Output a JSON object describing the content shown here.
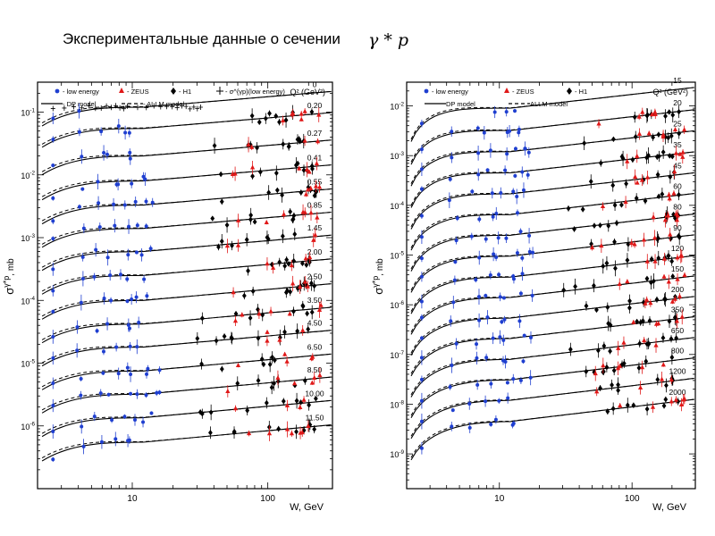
{
  "slide": {
    "title": "Экспериментальные данные о сечении",
    "formula": "γ * p"
  },
  "colors": {
    "low_energy": "#1f3fd0",
    "zeus": "#e01818",
    "h1": "#000000",
    "model": "#000000"
  },
  "chart_data": [
    {
      "type": "scatter",
      "xscale": "log",
      "yscale": "log",
      "xlim": [
        2,
        300
      ],
      "ylim": [
        1e-07,
        0.3
      ],
      "xlabel": "W, GeV",
      "ylabel": "σ^{γ*p}, mb",
      "x_ticks": [
        "10",
        "100"
      ],
      "y_ticks": [
        "10^{-1}",
        "10^{-2}",
        "10^{-3}",
        "10^{-4}",
        "10^{-5}",
        "10^{-6}"
      ],
      "legend": {
        "placement": "top",
        "q2_header": "Q² (GeV²)",
        "entries": [
          "- low energy",
          "- ZEUS",
          "- H1",
          "- σ^{γp}(low energy)",
          "- DP model",
          "- ALLM model"
        ]
      },
      "q2_labels": [
        "0",
        "0.20",
        "0.27",
        "0.41",
        "0.55",
        "0.85",
        "1.45",
        "2.00",
        "2.50",
        "3.50",
        "4.50",
        "6.50",
        "8.50",
        "10.00",
        "11.50"
      ],
      "curve_levels": [
        0.12,
        0.055,
        0.02,
        0.008,
        0.0033,
        0.0014,
        0.0006,
        0.00025,
        0.0001,
        4.2e-05,
        1.8e-05,
        7.5e-06,
        3.2e-06,
        1.35e-06,
        5.5e-07
      ]
    },
    {
      "type": "scatter",
      "xscale": "log",
      "yscale": "log",
      "xlim": [
        2,
        300
      ],
      "ylim": [
        2e-10,
        0.03
      ],
      "xlabel": "W, GeV",
      "ylabel": "σ^{γ*p}, mb",
      "x_ticks": [
        "10",
        "100"
      ],
      "y_ticks": [
        "10^{-2}",
        "10^{-3}",
        "10^{-4}",
        "10^{-5}",
        "10^{-6}",
        "10^{-7}",
        "10^{-8}",
        "10^{-9}"
      ],
      "legend": {
        "placement": "top",
        "q2_header": "Q² (GeV²)",
        "entries": [
          "- low energy",
          "- ZEUS",
          "- H1",
          "DP model",
          "ALLM model"
        ]
      },
      "q2_labels": [
        "15",
        "20",
        "25",
        "35",
        "45",
        "60",
        "80",
        "90",
        "120",
        "150",
        "200",
        "350",
        "650",
        "800",
        "1200",
        "2000"
      ],
      "curve_levels": [
        0.009,
        0.0032,
        0.0012,
        0.00045,
        0.00017,
        6.5e-05,
        2.5e-05,
        9.5e-06,
        3.6e-06,
        1.4e-06,
        5.4e-07,
        2.1e-07,
        8e-08,
        3.1e-08,
        1.2e-08,
        4.5e-09
      ]
    }
  ]
}
